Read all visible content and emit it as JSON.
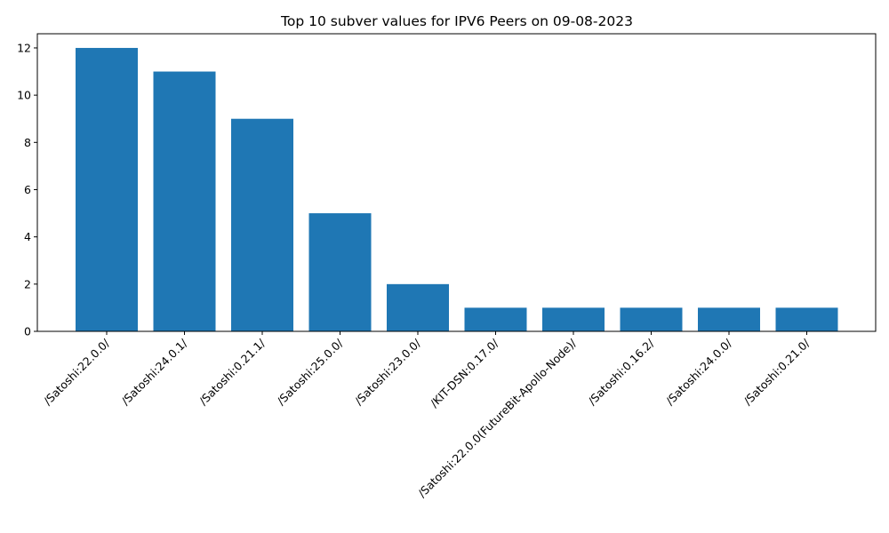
{
  "chart_data": {
    "type": "bar",
    "title": "Top 10 subver values for IPV6 Peers on 09-08-2023",
    "xlabel": "",
    "ylabel": "",
    "categories": [
      "/Satoshi:22.0.0/",
      "/Satoshi:24.0.1/",
      "/Satoshi:0.21.1/",
      "/Satoshi:25.0.0/",
      "/Satoshi:23.0.0/",
      "/KIT-DSN:0.17.0/",
      "/Satoshi:22.0.0(FutureBit-Apollo-Node)/",
      "/Satoshi:0.16.2/",
      "/Satoshi:24.0.0/",
      "/Satoshi:0.21.0/"
    ],
    "values": [
      12,
      11,
      9,
      5,
      2,
      1,
      1,
      1,
      1,
      1
    ],
    "ylim": [
      0,
      12.6
    ],
    "yticks": [
      0,
      2,
      4,
      6,
      8,
      10,
      12
    ],
    "bar_color": "#1f77b4",
    "grid": false,
    "legend": "none"
  }
}
